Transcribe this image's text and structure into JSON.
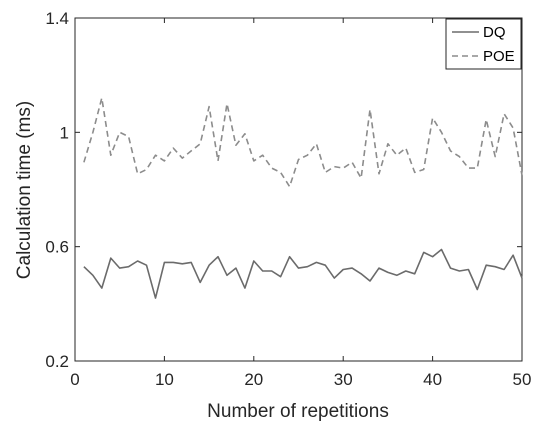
{
  "chart_data": {
    "type": "line",
    "title": "",
    "xlabel": "Number of repetitions",
    "ylabel": "Calculation time (ms)",
    "xlim": [
      0,
      50
    ],
    "ylim": [
      0.2,
      1.4
    ],
    "xticks": [
      0,
      10,
      20,
      30,
      40,
      50
    ],
    "yticks": [
      0.2,
      0.6,
      1,
      1.4
    ],
    "xtick_labels": [
      "0",
      "10",
      "20",
      "30",
      "40",
      "50"
    ],
    "ytick_labels": [
      "0.2",
      "0.6",
      "1",
      "1.4"
    ],
    "grid": false,
    "legend_position": "top-right",
    "x": [
      1,
      2,
      3,
      4,
      5,
      6,
      7,
      8,
      9,
      10,
      11,
      12,
      13,
      14,
      15,
      16,
      17,
      18,
      19,
      20,
      21,
      22,
      23,
      24,
      25,
      26,
      27,
      28,
      29,
      30,
      31,
      32,
      33,
      34,
      35,
      36,
      37,
      38,
      39,
      40,
      41,
      42,
      43,
      44,
      45,
      46,
      47,
      48,
      49,
      50
    ],
    "series": [
      {
        "name": "DQ",
        "style": "solid",
        "color": "#6b6b6b",
        "values": [
          0.53,
          0.5,
          0.455,
          0.56,
          0.525,
          0.53,
          0.55,
          0.535,
          0.42,
          0.545,
          0.545,
          0.54,
          0.545,
          0.475,
          0.535,
          0.565,
          0.5,
          0.525,
          0.455,
          0.55,
          0.515,
          0.515,
          0.495,
          0.565,
          0.525,
          0.53,
          0.545,
          0.535,
          0.49,
          0.52,
          0.525,
          0.505,
          0.48,
          0.525,
          0.51,
          0.5,
          0.515,
          0.505,
          0.58,
          0.565,
          0.59,
          0.525,
          0.515,
          0.52,
          0.45,
          0.535,
          0.53,
          0.52,
          0.57,
          0.49
        ]
      },
      {
        "name": "POE",
        "style": "dashed",
        "color": "#8c8c8c",
        "values": [
          0.895,
          1.0,
          1.12,
          0.92,
          1.0,
          0.985,
          0.855,
          0.87,
          0.92,
          0.9,
          0.945,
          0.91,
          0.935,
          0.96,
          1.09,
          0.9,
          1.1,
          0.955,
          0.995,
          0.9,
          0.92,
          0.875,
          0.86,
          0.81,
          0.905,
          0.92,
          0.96,
          0.86,
          0.88,
          0.875,
          0.895,
          0.84,
          1.08,
          0.855,
          0.96,
          0.92,
          0.945,
          0.86,
          0.87,
          1.05,
          1.0,
          0.935,
          0.915,
          0.875,
          0.875,
          1.045,
          0.915,
          1.065,
          1.015,
          0.85
        ]
      }
    ]
  }
}
